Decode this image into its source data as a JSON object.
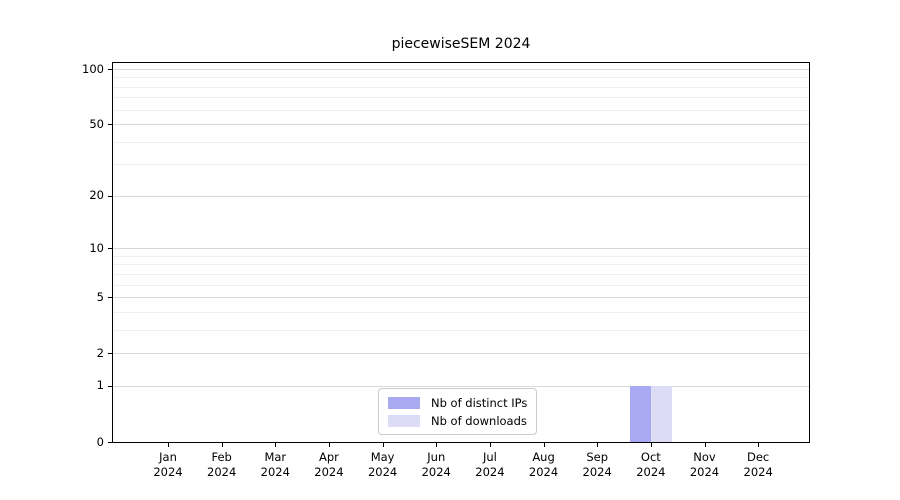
{
  "title": "piecewiseSEM 2024",
  "colors": {
    "distinct_ips": "#a9a9f2",
    "downloads": "#dcdcf6",
    "grid_major": "#d9d9d9",
    "grid_minor": "#f0f0f0",
    "spine": "#000000",
    "legend_border": "#cccccc",
    "background": "#ffffff"
  },
  "legend": {
    "items": [
      {
        "label": "Nb of distinct IPs",
        "color": "#a9a9f2"
      },
      {
        "label": "Nb of downloads",
        "color": "#dcdcf6"
      }
    ]
  },
  "chart_data": {
    "type": "bar",
    "title": "piecewiseSEM 2024",
    "categories": [
      "Jan 2024",
      "Feb 2024",
      "Mar 2024",
      "Apr 2024",
      "May 2024",
      "Jun 2024",
      "Jul 2024",
      "Aug 2024",
      "Sep 2024",
      "Oct 2024",
      "Nov 2024",
      "Dec 2024"
    ],
    "series": [
      {
        "name": "Nb of distinct IPs",
        "color": "#a9a9f2",
        "values": [
          0,
          0,
          0,
          0,
          0,
          0,
          0,
          0,
          0,
          1,
          0,
          0
        ]
      },
      {
        "name": "Nb of downloads",
        "color": "#dcdcf6",
        "values": [
          0,
          0,
          0,
          0,
          0,
          0,
          0,
          0,
          0,
          1,
          0,
          0
        ]
      }
    ],
    "xlabel": "",
    "ylabel": "",
    "yscale": "log1p",
    "y_ticks": [
      0,
      1,
      2,
      5,
      10,
      20,
      50,
      100
    ],
    "y_minor_gridlines": [
      3,
      4,
      6,
      7,
      8,
      9,
      30,
      40,
      60,
      70,
      80,
      90
    ],
    "ylim": [
      0,
      110
    ],
    "grid": "on",
    "legend_position": "lower center"
  }
}
